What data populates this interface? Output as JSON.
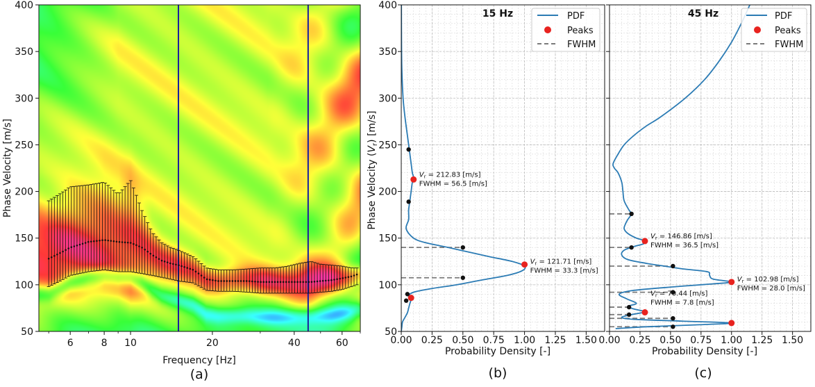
{
  "chart_data": [
    {
      "panel": "(a)",
      "type": "heatmap",
      "xlabel": "Frequency [Hz]",
      "ylabel": "Phase Velocity [m/s]",
      "xscale": "log",
      "xlim": [
        4.6,
        70
      ],
      "ylim": [
        50,
        400
      ],
      "xticks": [
        6,
        8,
        10,
        20,
        40,
        60
      ],
      "xtick_labels": [
        "6",
        "8",
        "10",
        "20",
        "40",
        "60"
      ],
      "yticks": [
        50,
        100,
        150,
        200,
        250,
        300,
        350,
        400
      ],
      "vertical_lines": [
        15,
        45
      ],
      "vertical_line_color": "#1a1aa0",
      "errorbar_series": {
        "x": [
          5,
          6,
          7,
          8,
          9,
          10,
          11,
          12,
          13,
          14,
          15,
          17,
          19,
          21,
          24,
          27,
          30,
          34,
          38,
          42,
          46,
          50,
          55,
          60,
          65,
          68
        ],
        "y": [
          128,
          140,
          146,
          148,
          146,
          145,
          140,
          132,
          126,
          123,
          121,
          116,
          106,
          104,
          104,
          104,
          103,
          103,
          103,
          103,
          103,
          104,
          105,
          107,
          109,
          111
        ],
        "lower": [
          98,
          110,
          114,
          116,
          114,
          114,
          112,
          110,
          108,
          106,
          104,
          102,
          94,
          93,
          93,
          92,
          91,
          91,
          91,
          91,
          91,
          92,
          93,
          95,
          98,
          100
        ],
        "upper": [
          190,
          205,
          207,
          210,
          197,
          212,
          180,
          156,
          145,
          140,
          137,
          130,
          118,
          116,
          116,
          117,
          118,
          118,
          120,
          123,
          125,
          122,
          121,
          120,
          118,
          118
        ]
      }
    },
    {
      "panel": "(b)",
      "type": "line",
      "title": "15 Hz",
      "xlabel": "Probability Density [-]",
      "ylabel": "Phase Velocity (V_r) [m/s]",
      "ylabel_main": "Phase Velocity (",
      "ylabel_sym": "V",
      "ylabel_sub": "r",
      "ylabel_end": ") [m/s]",
      "xlim": [
        0,
        1.65
      ],
      "ylim": [
        50,
        400
      ],
      "xticks": [
        0.0,
        0.25,
        0.5,
        0.75,
        1.0,
        1.25,
        1.5
      ],
      "xtick_labels": [
        "0.00",
        "0.25",
        "0.50",
        "0.75",
        "1.00",
        "1.25",
        "1.50"
      ],
      "yticks": [
        50,
        100,
        150,
        200,
        250,
        300,
        350,
        400
      ],
      "legend": [
        "PDF",
        "Peaks",
        "FWHM"
      ],
      "legend_position": "top-right",
      "pdf": {
        "v": [
          50,
          55,
          60,
          65,
          70,
          75,
          80,
          85,
          88,
          92,
          96,
          100,
          105,
          110,
          115,
          120,
          125,
          130,
          135,
          140,
          145,
          150,
          160,
          170,
          180,
          190,
          200,
          210,
          215,
          220,
          230,
          240,
          250,
          260,
          280,
          300,
          330,
          360,
          400
        ],
        "pdf": [
          0.0,
          0.005,
          0.01,
          0.03,
          0.05,
          0.06,
          0.07,
          0.08,
          0.06,
          0.1,
          0.25,
          0.45,
          0.65,
          0.86,
          0.98,
          1.0,
          0.9,
          0.72,
          0.55,
          0.38,
          0.2,
          0.1,
          0.04,
          0.06,
          0.06,
          0.07,
          0.08,
          0.09,
          0.1,
          0.09,
          0.08,
          0.07,
          0.06,
          0.05,
          0.03,
          0.015,
          0.005,
          0.002,
          0.001
        ]
      },
      "peaks": [
        {
          "pd": 1.0,
          "v": 121.71,
          "label1": "V_r = 121.71 [m/s]",
          "label1_val": "= 121.71 [m/s]",
          "label2": "FWHM = 33.3 [m/s]"
        },
        {
          "pd": 0.1,
          "v": 212.83,
          "label1": "V_r = 212.83 [m/s]",
          "label1_val": "= 212.83 [m/s]",
          "label2": "FWHM = 56.5 [m/s]"
        },
        {
          "pd": 0.08,
          "v": 86
        }
      ],
      "half_max_points": [
        {
          "pd": 0.5,
          "v": 140
        },
        {
          "pd": 0.5,
          "v": 107.5
        },
        {
          "pd": 0.06,
          "v": 245
        },
        {
          "pd": 0.06,
          "v": 189
        },
        {
          "pd": 0.05,
          "v": 90
        },
        {
          "pd": 0.04,
          "v": 83
        }
      ],
      "fwhm_lines": [
        140,
        107.5
      ]
    },
    {
      "panel": "(c)",
      "type": "line",
      "title": "45 Hz",
      "xlabel": "Probability Density [-]",
      "xlim": [
        0,
        1.65
      ],
      "ylim": [
        50,
        400
      ],
      "xticks": [
        0.0,
        0.25,
        0.5,
        0.75,
        1.0,
        1.25,
        1.5
      ],
      "xtick_labels": [
        "0.00",
        "0.25",
        "0.50",
        "0.75",
        "1.00",
        "1.25",
        "1.50"
      ],
      "legend": [
        "PDF",
        "Peaks",
        "FWHM"
      ],
      "legend_position": "top-right",
      "pdf": {
        "v": [
          53,
          55,
          57,
          59,
          61,
          63,
          65,
          68,
          71,
          74,
          77,
          80,
          85,
          90,
          94,
          98,
          101,
          103,
          106,
          110,
          114,
          117,
          120,
          123,
          127,
          132,
          137,
          141,
          144,
          147,
          150,
          155,
          160,
          165,
          170,
          176,
          180,
          190,
          200,
          210,
          220,
          225,
          230,
          240,
          250,
          260,
          270,
          280,
          300,
          320,
          340,
          360,
          380,
          400
        ],
        "pdf": [
          0.05,
          0.3,
          0.7,
          1.0,
          0.6,
          0.2,
          0.1,
          0.18,
          0.29,
          0.2,
          0.15,
          0.22,
          0.14,
          0.08,
          0.2,
          0.55,
          0.85,
          1.0,
          0.85,
          0.82,
          0.8,
          0.6,
          0.45,
          0.3,
          0.15,
          0.1,
          0.12,
          0.2,
          0.28,
          0.29,
          0.22,
          0.15,
          0.12,
          0.13,
          0.15,
          0.18,
          0.16,
          0.12,
          0.11,
          0.1,
          0.07,
          0.04,
          0.03,
          0.07,
          0.12,
          0.2,
          0.3,
          0.42,
          0.62,
          0.78,
          0.9,
          1.0,
          1.08,
          1.15
        ]
      },
      "peaks": [
        {
          "pd": 1.0,
          "v": 102.98,
          "label1": "V_r = 102.98 [m/s]",
          "label1_val": "= 102.98 [m/s]",
          "label2": "FWHM = 28.0 [m/s]"
        },
        {
          "pd": 0.29,
          "v": 146.86,
          "label1": "V_r = 146.86 [m/s]",
          "label1_val": "= 146.86 [m/s]",
          "label2": "FWHM = 36.5 [m/s]"
        },
        {
          "pd": 0.29,
          "v": 70.44,
          "label1": "V_r = 70.44 [m/s]",
          "label1_val": "= 70.44 [m/s]",
          "label2": "FWHM = 7.8 [m/s]"
        },
        {
          "pd": 1.0,
          "v": 59
        }
      ],
      "half_max_points": [
        {
          "pd": 0.52,
          "v": 120
        },
        {
          "pd": 0.52,
          "v": 92
        },
        {
          "pd": 0.18,
          "v": 176
        },
        {
          "pd": 0.18,
          "v": 140
        },
        {
          "pd": 0.16,
          "v": 76
        },
        {
          "pd": 0.16,
          "v": 68
        },
        {
          "pd": 0.52,
          "v": 64
        },
        {
          "pd": 0.52,
          "v": 55
        }
      ],
      "fwhm_lines": [
        176,
        140,
        120,
        92,
        76,
        68,
        64,
        55
      ]
    }
  ],
  "colors": {
    "pdf": "#2b7bb4",
    "peaks": "#e8231f",
    "fwhm": "#7a7a7a",
    "frame": "#111111",
    "vertical_lines": "#1a1aa0"
  }
}
